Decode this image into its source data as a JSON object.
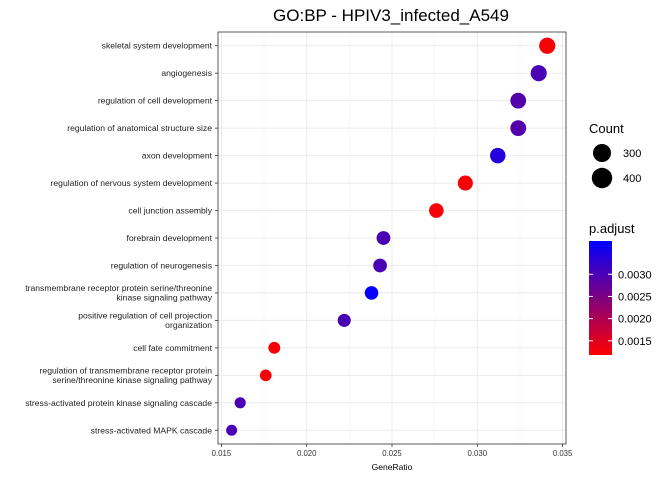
{
  "chart_data": {
    "type": "scatter",
    "title": "GO:BP - HPIV3_infected_A549",
    "xlabel": "GeneRatio",
    "ylabel": "",
    "xlim": [
      0.0148,
      0.0352
    ],
    "xticks": [
      0.015,
      0.02,
      0.025,
      0.03,
      0.035
    ],
    "xtick_labels": [
      "0.015",
      "0.020",
      "0.025",
      "0.030",
      "0.035"
    ],
    "grid": true,
    "legend_position": "right",
    "points": [
      {
        "label": [
          "skeletal system development"
        ],
        "x": 0.0341,
        "count": 400,
        "p_adjust": 0.00125
      },
      {
        "label": [
          "angiogenesis"
        ],
        "x": 0.0336,
        "count": 395,
        "p_adjust": 0.003
      },
      {
        "label": [
          "regulation of cell development"
        ],
        "x": 0.0324,
        "count": 380,
        "p_adjust": 0.0029
      },
      {
        "label": [
          "regulation of anatomical structure size"
        ],
        "x": 0.0324,
        "count": 380,
        "p_adjust": 0.0029
      },
      {
        "label": [
          "axon development"
        ],
        "x": 0.0312,
        "count": 365,
        "p_adjust": 0.0034
      },
      {
        "label": [
          "regulation of nervous system development"
        ],
        "x": 0.0293,
        "count": 345,
        "p_adjust": 0.00125
      },
      {
        "label": [
          "cell junction assembly"
        ],
        "x": 0.0276,
        "count": 325,
        "p_adjust": 0.00125
      },
      {
        "label": [
          "forebrain development"
        ],
        "x": 0.0245,
        "count": 290,
        "p_adjust": 0.003
      },
      {
        "label": [
          "regulation of neurogenesis"
        ],
        "x": 0.0243,
        "count": 288,
        "p_adjust": 0.003
      },
      {
        "label": [
          "transmembrane receptor protein serine/threonine",
          "kinase signaling pathway"
        ],
        "x": 0.0238,
        "count": 282,
        "p_adjust": 0.0037
      },
      {
        "label": [
          "positive regulation of cell projection",
          "organization"
        ],
        "x": 0.0222,
        "count": 262,
        "p_adjust": 0.003
      },
      {
        "label": [
          "cell fate commitment"
        ],
        "x": 0.0181,
        "count": 215,
        "p_adjust": 0.00125
      },
      {
        "label": [
          "regulation of transmembrane receptor protein",
          "serine/threonine kinase signaling pathway"
        ],
        "x": 0.0176,
        "count": 208,
        "p_adjust": 0.00125
      },
      {
        "label": [
          "stress-activated protein kinase signaling cascade"
        ],
        "x": 0.0161,
        "count": 190,
        "p_adjust": 0.003
      },
      {
        "label": [
          "stress-activated MAPK cascade"
        ],
        "x": 0.0156,
        "count": 185,
        "p_adjust": 0.003
      }
    ],
    "size_legend": {
      "title": "Count",
      "entries": [
        {
          "label": "300",
          "value": 300
        },
        {
          "label": "400",
          "value": 400
        }
      ]
    },
    "color_legend": {
      "title": "p.adjust",
      "min": 0.00118,
      "max": 0.00375,
      "low_color": "#ff0000",
      "high_color": "#0000ff",
      "ticks": [
        {
          "label": "0.0030",
          "value": 0.003
        },
        {
          "label": "0.0025",
          "value": 0.0025
        },
        {
          "label": "0.0020",
          "value": 0.002
        },
        {
          "label": "0.0015",
          "value": 0.0015
        }
      ]
    },
    "panel_background": "#ffffff",
    "grid_color": "#ebebeb",
    "border_color": "#333333"
  }
}
